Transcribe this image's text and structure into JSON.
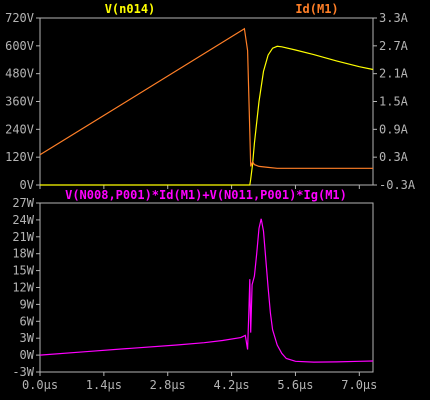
{
  "chart_data": [
    {
      "type": "line",
      "title": "",
      "legend": "top",
      "grid": false,
      "xlim": [
        0,
        7.3
      ],
      "x_ticks": [
        "0.0µs",
        "1.4µs",
        "2.8µs",
        "4.2µs",
        "5.6µs",
        "7.0µs"
      ],
      "x_tick_values": [
        0,
        1.4,
        2.8,
        4.2,
        5.6,
        7.0
      ],
      "ylim": [
        0,
        720
      ],
      "y_ticks": [
        "0V",
        "120V",
        "240V",
        "360V",
        "480V",
        "600V",
        "720V"
      ],
      "y_tick_values": [
        0,
        120,
        240,
        360,
        480,
        600,
        720
      ],
      "y2lim": [
        -0.3,
        3.3
      ],
      "y2_ticks": [
        "-0.3A",
        "0.3A",
        "0.9A",
        "1.5A",
        "2.1A",
        "2.7A",
        "3.3A"
      ],
      "y2_tick_values": [
        -0.3,
        0.3,
        0.9,
        1.5,
        2.1,
        2.7,
        3.3
      ],
      "series": [
        {
          "name": "V(n014)",
          "axis": "left",
          "color": "#ffff00",
          "x": [
            0,
            4.6,
            4.62,
            4.66,
            4.7,
            4.8,
            4.9,
            5.0,
            5.1,
            5.2,
            5.3,
            5.6,
            6.0,
            6.5,
            7.0,
            7.3
          ],
          "y": [
            0,
            0,
            25,
            90,
            180,
            360,
            490,
            560,
            590,
            598,
            596,
            582,
            562,
            535,
            510,
            498
          ]
        },
        {
          "name": "Id(M1)",
          "axis": "right",
          "color": "#ff7f27",
          "x": [
            0,
            4.45,
            4.48,
            4.55,
            4.6,
            4.62,
            4.66,
            4.7,
            4.8,
            5.0,
            5.2,
            6.0,
            7.3
          ],
          "y": [
            0.35,
            3.05,
            3.07,
            2.6,
            0.85,
            0.1,
            0.2,
            0.14,
            0.1,
            0.08,
            0.06,
            0.06,
            0.06
          ]
        }
      ]
    },
    {
      "type": "line",
      "title": "",
      "legend": "top",
      "grid": false,
      "xlim": [
        0,
        7.3
      ],
      "x_ticks": [
        "0.0µs",
        "1.4µs",
        "2.8µs",
        "4.2µs",
        "5.6µs",
        "7.0µs"
      ],
      "x_tick_values": [
        0,
        1.4,
        2.8,
        4.2,
        5.6,
        7.0
      ],
      "ylim": [
        -3,
        27
      ],
      "y_ticks": [
        "-3W",
        "0W",
        "3W",
        "6W",
        "9W",
        "12W",
        "15W",
        "18W",
        "21W",
        "24W",
        "27W"
      ],
      "y_tick_values": [
        -3,
        0,
        3,
        6,
        9,
        12,
        15,
        18,
        21,
        24,
        27
      ],
      "series": [
        {
          "name": "V(N008,P001)*Id(M1)+V(N011,P001)*Ig(M1)",
          "axis": "left",
          "color": "#ff00ff",
          "x": [
            0,
            1.0,
            2.0,
            3.0,
            3.6,
            4.0,
            4.4,
            4.5,
            4.55,
            4.58,
            4.6,
            4.62,
            4.65,
            4.7,
            4.75,
            4.8,
            4.85,
            4.9,
            4.95,
            5.0,
            5.05,
            5.1,
            5.2,
            5.3,
            5.4,
            5.6,
            6.0,
            6.5,
            7.0,
            7.3
          ],
          "y": [
            0,
            0.6,
            1.2,
            1.8,
            2.2,
            2.6,
            3.1,
            3.5,
            1.0,
            8.0,
            13.5,
            4.0,
            12.5,
            14.0,
            18.0,
            22.5,
            24.2,
            22.0,
            17.0,
            12.0,
            7.5,
            4.5,
            1.8,
            0.3,
            -0.6,
            -1.1,
            -1.25,
            -1.2,
            -1.1,
            -1.05
          ]
        }
      ]
    }
  ]
}
